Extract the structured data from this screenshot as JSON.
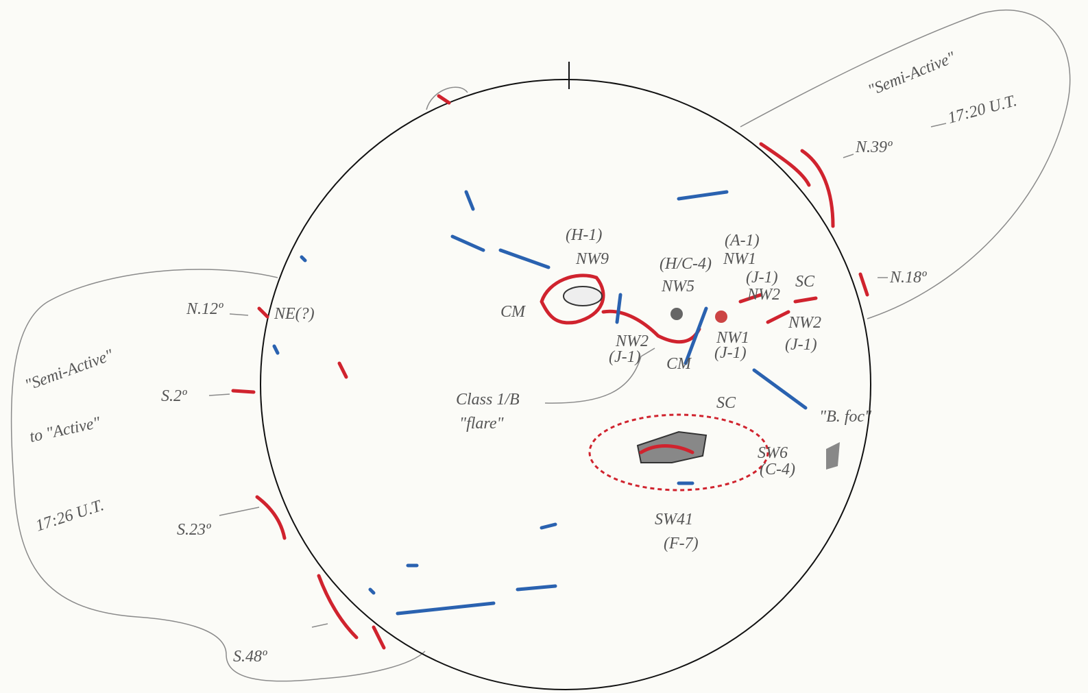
{
  "right_region": {
    "title": "\"Semi-Active\"",
    "time": "17:20 U.T."
  },
  "left_region": {
    "title_line1": "\"Semi-Active\"",
    "title_line2": "to \"Active\"",
    "time": "17:26 U.T."
  },
  "latitudes": [
    "N.39º",
    "N.18º",
    "N.12º",
    "S.2º",
    "S.23º",
    "S.48º"
  ],
  "disk_labels": [
    "(H-1)",
    "NW9",
    "CM",
    "(H/C-4)",
    "NW5",
    "(A-1)",
    "NW1",
    "(J-1)",
    "NW2",
    "SC",
    "NW2",
    "(J-1)",
    "NW2",
    "(J-1)",
    "NW1",
    "(J-1)",
    "CM",
    "NE(?)",
    "Class 1/B",
    "\"flare\"",
    "SC",
    "\"B. foc\"",
    "SW6",
    "(C-4)",
    "SW41",
    "(F-7)"
  ]
}
